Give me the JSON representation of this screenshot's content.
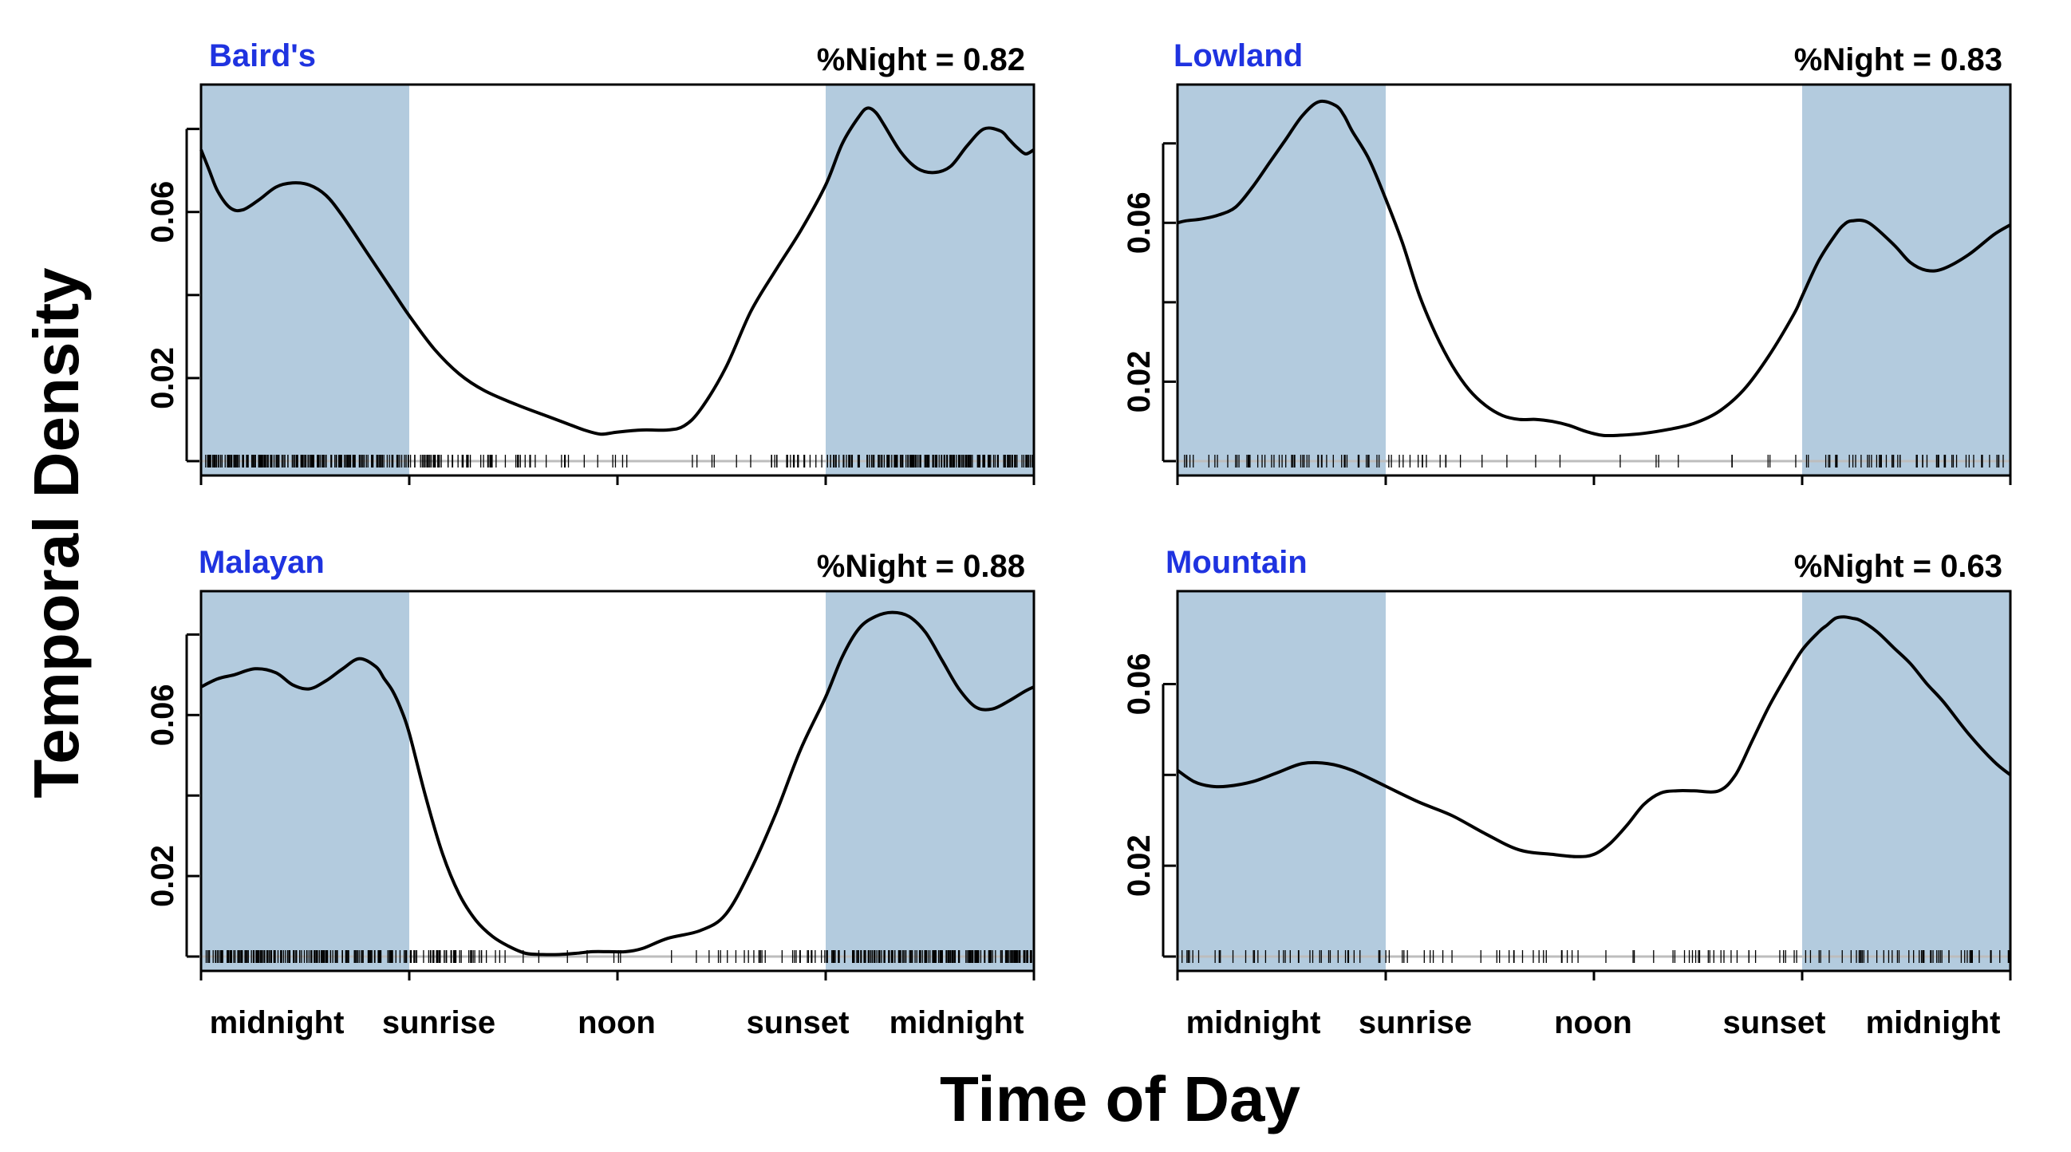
{
  "figure": {
    "xlabel": "Time of Day",
    "ylabel": "Temporal Density"
  },
  "colors": {
    "night_band": "#b3cbde",
    "title_blue": "#1f33e0",
    "curve": "#000000",
    "rug": "#000000"
  },
  "chart_data": [
    {
      "type": "line",
      "title": "Baird's",
      "stat_label": "%Night = 0.82",
      "x_ticks": [
        "midnight",
        "sunrise",
        "noon",
        "sunset",
        "midnight"
      ],
      "y_ticks": [
        "0.02",
        "0.06"
      ],
      "ylim": [
        0,
        0.088
      ],
      "night_bands": [
        [
          0,
          0.25
        ],
        [
          0.75,
          1
        ]
      ],
      "x": [
        0.0,
        0.01,
        0.02,
        0.035,
        0.05,
        0.07,
        0.09,
        0.11,
        0.13,
        0.15,
        0.17,
        0.2,
        0.23,
        0.25,
        0.28,
        0.31,
        0.34,
        0.38,
        0.42,
        0.44,
        0.46,
        0.48,
        0.5,
        0.53,
        0.56,
        0.58,
        0.6,
        0.63,
        0.66,
        0.69,
        0.72,
        0.75,
        0.77,
        0.79,
        0.8,
        0.81,
        0.82,
        0.84,
        0.86,
        0.88,
        0.9,
        0.92,
        0.94,
        0.96,
        0.97,
        0.98,
        0.99,
        1.0
      ],
      "y": [
        0.075,
        0.07,
        0.065,
        0.061,
        0.0605,
        0.063,
        0.066,
        0.067,
        0.0665,
        0.064,
        0.059,
        0.05,
        0.041,
        0.035,
        0.027,
        0.021,
        0.017,
        0.0135,
        0.0105,
        0.009,
        0.0075,
        0.0065,
        0.007,
        0.0075,
        0.0075,
        0.0085,
        0.0125,
        0.0225,
        0.036,
        0.046,
        0.0555,
        0.0665,
        0.0765,
        0.083,
        0.085,
        0.084,
        0.081,
        0.0745,
        0.0705,
        0.0695,
        0.071,
        0.076,
        0.08,
        0.0795,
        0.0775,
        0.0755,
        0.074,
        0.075
      ],
      "rug_density": [
        6,
        7,
        7,
        6,
        5,
        4,
        3,
        1.5,
        1,
        0.6,
        0.4,
        0.3,
        0.5,
        1,
        2,
        4,
        6,
        7,
        7,
        6
      ]
    },
    {
      "type": "line",
      "title": "Lowland",
      "stat_label": "%Night = 0.83",
      "x_ticks": [
        "midnight",
        "sunrise",
        "noon",
        "sunset",
        "midnight"
      ],
      "y_ticks": [
        "0.02",
        "0.06"
      ],
      "ylim": [
        0,
        0.092
      ],
      "night_bands": [
        [
          0,
          0.25
        ],
        [
          0.75,
          1
        ]
      ],
      "x": [
        0.0,
        0.01,
        0.03,
        0.05,
        0.07,
        0.09,
        0.11,
        0.13,
        0.15,
        0.17,
        0.19,
        0.2,
        0.21,
        0.23,
        0.25,
        0.27,
        0.29,
        0.31,
        0.33,
        0.35,
        0.37,
        0.39,
        0.41,
        0.43,
        0.45,
        0.47,
        0.49,
        0.51,
        0.53,
        0.56,
        0.59,
        0.62,
        0.65,
        0.68,
        0.71,
        0.74,
        0.75,
        0.77,
        0.79,
        0.8,
        0.81,
        0.83,
        0.86,
        0.88,
        0.9,
        0.92,
        0.95,
        0.98,
        1.0
      ],
      "y": [
        0.06,
        0.0605,
        0.061,
        0.062,
        0.064,
        0.069,
        0.075,
        0.081,
        0.087,
        0.0905,
        0.0895,
        0.087,
        0.083,
        0.076,
        0.066,
        0.055,
        0.042,
        0.032,
        0.024,
        0.018,
        0.014,
        0.0115,
        0.0105,
        0.0105,
        0.01,
        0.009,
        0.0075,
        0.0065,
        0.0065,
        0.007,
        0.008,
        0.0095,
        0.0125,
        0.018,
        0.0265,
        0.037,
        0.0415,
        0.0505,
        0.057,
        0.0595,
        0.0605,
        0.06,
        0.0545,
        0.05,
        0.048,
        0.0485,
        0.052,
        0.057,
        0.0595
      ],
      "rug_density": [
        1.5,
        1.5,
        2,
        2,
        1.8,
        1.5,
        0.6,
        0.4,
        0.2,
        0.2,
        0.2,
        0.3,
        0.2,
        0.3,
        0.5,
        1.5,
        2,
        2,
        1.8,
        1.5
      ]
    },
    {
      "type": "line",
      "title": "Malayan",
      "stat_label": "%Night = 0.88",
      "x_ticks": [
        "midnight",
        "sunrise",
        "noon",
        "sunset",
        "midnight"
      ],
      "y_ticks": [
        "0.02",
        "0.06"
      ],
      "ylim": [
        0,
        0.088
      ],
      "night_bands": [
        [
          0,
          0.25
        ],
        [
          0.75,
          1
        ]
      ],
      "x": [
        0.0,
        0.02,
        0.04,
        0.065,
        0.09,
        0.11,
        0.13,
        0.15,
        0.17,
        0.19,
        0.21,
        0.22,
        0.23,
        0.24,
        0.25,
        0.27,
        0.29,
        0.31,
        0.33,
        0.35,
        0.37,
        0.39,
        0.41,
        0.43,
        0.45,
        0.47,
        0.49,
        0.51,
        0.53,
        0.56,
        0.6,
        0.63,
        0.66,
        0.69,
        0.72,
        0.75,
        0.77,
        0.79,
        0.81,
        0.83,
        0.85,
        0.87,
        0.89,
        0.91,
        0.93,
        0.95,
        0.97,
        0.99,
        1.0
      ],
      "y": [
        0.067,
        0.069,
        0.07,
        0.0715,
        0.0705,
        0.0675,
        0.0665,
        0.0685,
        0.0715,
        0.074,
        0.072,
        0.069,
        0.066,
        0.0615,
        0.0555,
        0.0395,
        0.0255,
        0.0155,
        0.009,
        0.005,
        0.0025,
        0.0008,
        0.0005,
        0.0005,
        0.0008,
        0.0012,
        0.0012,
        0.0012,
        0.002,
        0.0045,
        0.0065,
        0.0105,
        0.0215,
        0.0355,
        0.0515,
        0.0645,
        0.0745,
        0.0815,
        0.0845,
        0.0855,
        0.0845,
        0.0805,
        0.0735,
        0.0665,
        0.062,
        0.0615,
        0.0635,
        0.066,
        0.067
      ],
      "rug_density": [
        6,
        6,
        6,
        5,
        5,
        4,
        3,
        0.6,
        0.4,
        0.3,
        0.3,
        0.4,
        0.8,
        1.5,
        2,
        4,
        6,
        7,
        7,
        6
      ]
    },
    {
      "type": "line",
      "title": "Mountain",
      "stat_label": "%Night = 0.63",
      "x_ticks": [
        "midnight",
        "sunrise",
        "noon",
        "sunset",
        "midnight"
      ],
      "y_ticks": [
        "0.02",
        "0.06"
      ],
      "ylim": [
        0,
        0.078
      ],
      "night_bands": [
        [
          0,
          0.25
        ],
        [
          0.75,
          1
        ]
      ],
      "x": [
        0.0,
        0.02,
        0.04,
        0.06,
        0.09,
        0.12,
        0.15,
        0.18,
        0.21,
        0.25,
        0.29,
        0.33,
        0.37,
        0.41,
        0.45,
        0.48,
        0.5,
        0.52,
        0.54,
        0.56,
        0.58,
        0.6,
        0.62,
        0.65,
        0.67,
        0.69,
        0.71,
        0.73,
        0.75,
        0.77,
        0.78,
        0.79,
        0.8,
        0.81,
        0.82,
        0.84,
        0.86,
        0.88,
        0.9,
        0.92,
        0.95,
        0.98,
        1.0
      ],
      "y": [
        0.041,
        0.0385,
        0.0375,
        0.0375,
        0.0385,
        0.0405,
        0.0425,
        0.0425,
        0.041,
        0.0375,
        0.034,
        0.031,
        0.027,
        0.0235,
        0.0225,
        0.022,
        0.0225,
        0.025,
        0.029,
        0.0335,
        0.036,
        0.0365,
        0.0365,
        0.0365,
        0.04,
        0.0475,
        0.055,
        0.0615,
        0.0675,
        0.0715,
        0.073,
        0.0745,
        0.0748,
        0.0745,
        0.074,
        0.0715,
        0.068,
        0.0645,
        0.06,
        0.056,
        0.049,
        0.043,
        0.04
      ],
      "rug_density": [
        1.2,
        1.2,
        1.2,
        1.2,
        1.2,
        1,
        0.6,
        0.6,
        1.2,
        1,
        0.5,
        0.5,
        1.5,
        1.2,
        0.8,
        1,
        1.8,
        2,
        2,
        1.8
      ]
    }
  ]
}
